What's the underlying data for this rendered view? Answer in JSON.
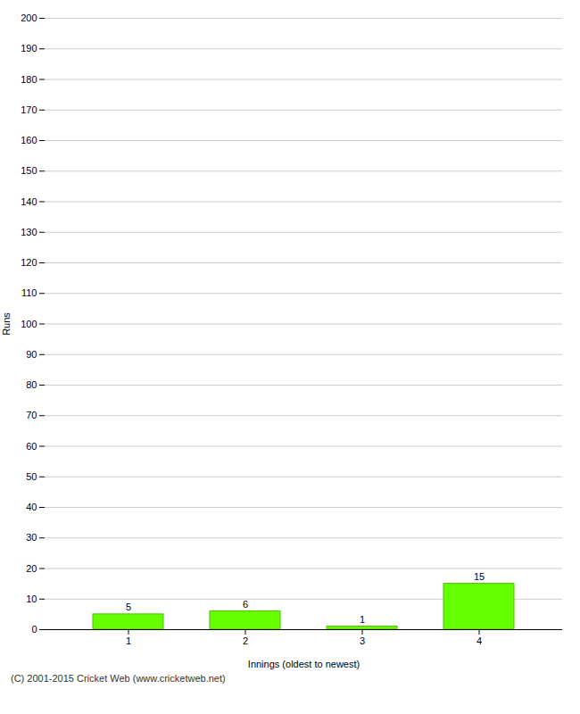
{
  "chart_data": {
    "type": "bar",
    "categories": [
      1,
      2,
      3,
      4
    ],
    "values": [
      5,
      6,
      1,
      15
    ],
    "color": "#66ff00",
    "xlabel": "Innings (oldest to newest)",
    "ylabel": "Runs",
    "ylim": [
      0,
      200
    ],
    "yticks": [
      0,
      10,
      20,
      30,
      40,
      50,
      60,
      70,
      80,
      90,
      100,
      110,
      120,
      130,
      140,
      150,
      160,
      170,
      180,
      190,
      200
    ],
    "grid": true,
    "data_labels": true,
    "footer": "(C) 2001-2015 Cricket Web (www.cricketweb.net)"
  }
}
